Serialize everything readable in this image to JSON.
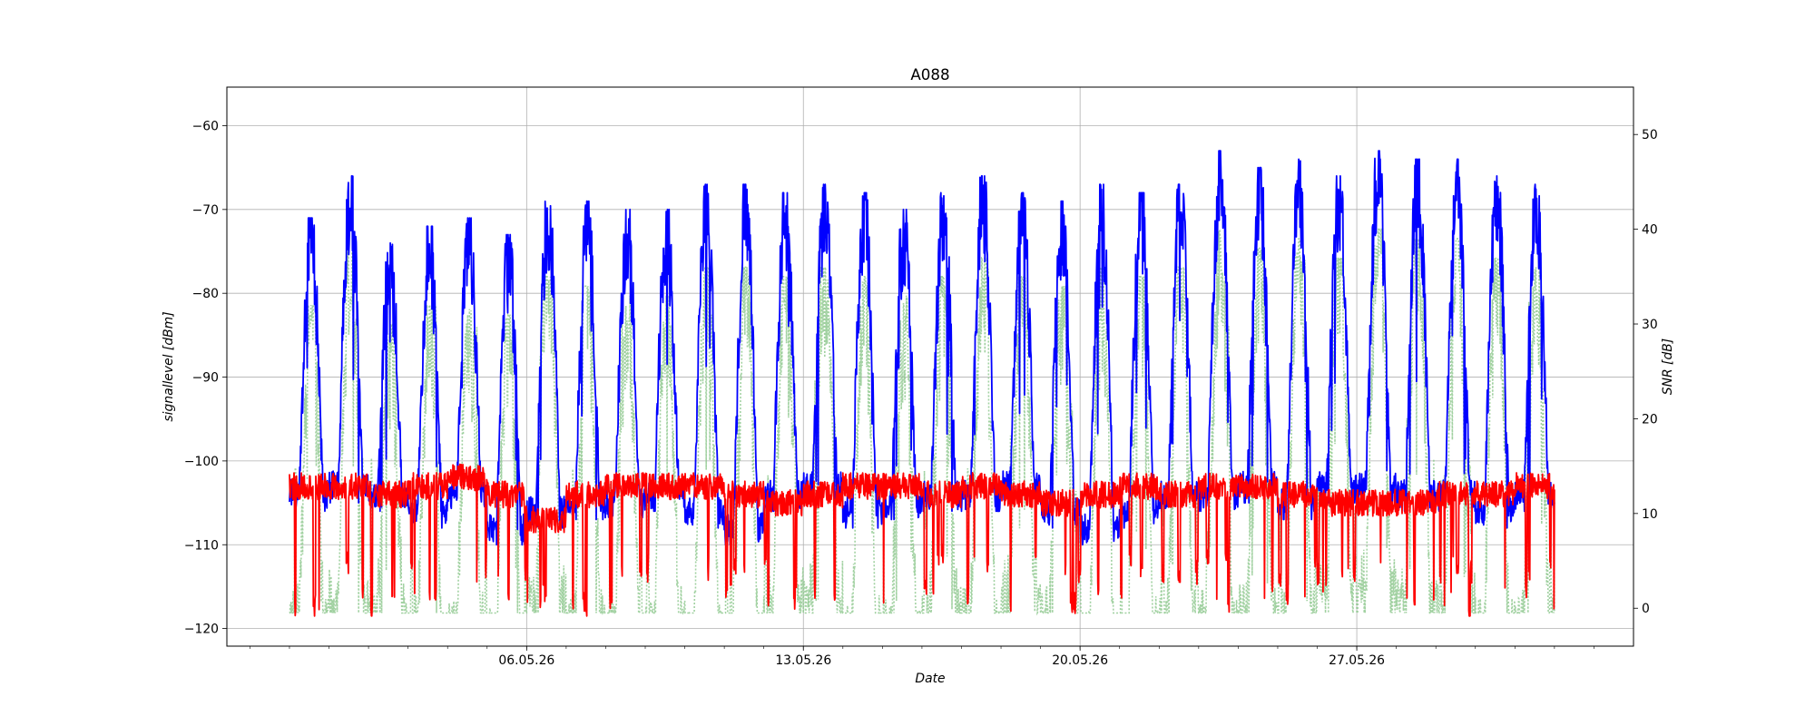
{
  "chart_data": {
    "type": "line",
    "title": "A088",
    "xlabel": "Date",
    "ylabel": "signallevel [dBm]",
    "y2label": "SNR [dB]",
    "x_tick_labels": [
      "06.05.26",
      "13.05.26",
      "20.05.26",
      "27.05.26"
    ],
    "x_tick_dates": [
      "2026-05-06",
      "2026-05-13",
      "2026-05-20",
      "2026-05-27"
    ],
    "xlim": [
      "2026-04-28 10:00",
      "2026-06-03 00:00"
    ],
    "ylim": [
      -122.1,
      -55.4
    ],
    "y2lim": [
      -4.0,
      55.0
    ],
    "y_ticks": [
      -120,
      -110,
      -100,
      -90,
      -80,
      -70,
      -60
    ],
    "y2_ticks": [
      0,
      10,
      20,
      30,
      40,
      50
    ],
    "grid": true,
    "data_range": [
      "2026-04-30 00:00",
      "2026-06-01 00:00"
    ],
    "series": [
      {
        "axis": "left",
        "color": "#0000ff",
        "description": "daily cycle: peak ~-72 dBm in the day, minimum ~-104 dBm at night",
        "daily_peaks": [
          -74,
          -69,
          -77,
          -75,
          -74,
          -76,
          -71,
          -72,
          -73,
          -73,
          -70,
          -70,
          -71,
          -70,
          -71,
          -73,
          -71,
          -69,
          -71,
          -72,
          -70,
          -71,
          -70,
          -66,
          -68,
          -67,
          -69,
          -66,
          -67,
          -67,
          -69,
          -70
        ],
        "daily_minima": [
          -104,
          -103,
          -104,
          -106,
          -104,
          -108,
          -106,
          -105,
          -105,
          -104,
          -106,
          -108,
          -104,
          -103,
          -106,
          -105,
          -104,
          -104,
          -103,
          -106,
          -108,
          -106,
          -104,
          -104,
          -103,
          -105,
          -103,
          -103,
          -104,
          -104,
          -106,
          -104
        ]
      },
      {
        "axis": "left",
        "color": "#ff0000",
        "description": "noise level around -103 dBm with frequent downward spikes to ~-118 dBm",
        "baseline": [
          -103,
          -103,
          -104,
          -103,
          -102,
          -104,
          -107,
          -104,
          -103,
          -103,
          -103,
          -104,
          -105,
          -104,
          -103,
          -103,
          -104,
          -103,
          -104,
          -105,
          -104,
          -103,
          -104,
          -103,
          -103,
          -104,
          -105,
          -105,
          -105,
          -104,
          -104,
          -103
        ]
      },
      {
        "axis": "right",
        "color": "#90c990",
        "style": "dotted",
        "description": "SNR in dB, daily cycle between ~1 dB and ~35 dB",
        "daily_peaks": [
          28,
          34,
          26,
          28,
          29,
          27,
          31,
          30,
          29,
          29,
          32,
          32,
          31,
          32,
          31,
          29,
          31,
          33,
          31,
          30,
          32,
          31,
          32,
          36,
          34,
          35,
          33,
          36,
          35,
          35,
          33,
          32
        ]
      }
    ]
  }
}
